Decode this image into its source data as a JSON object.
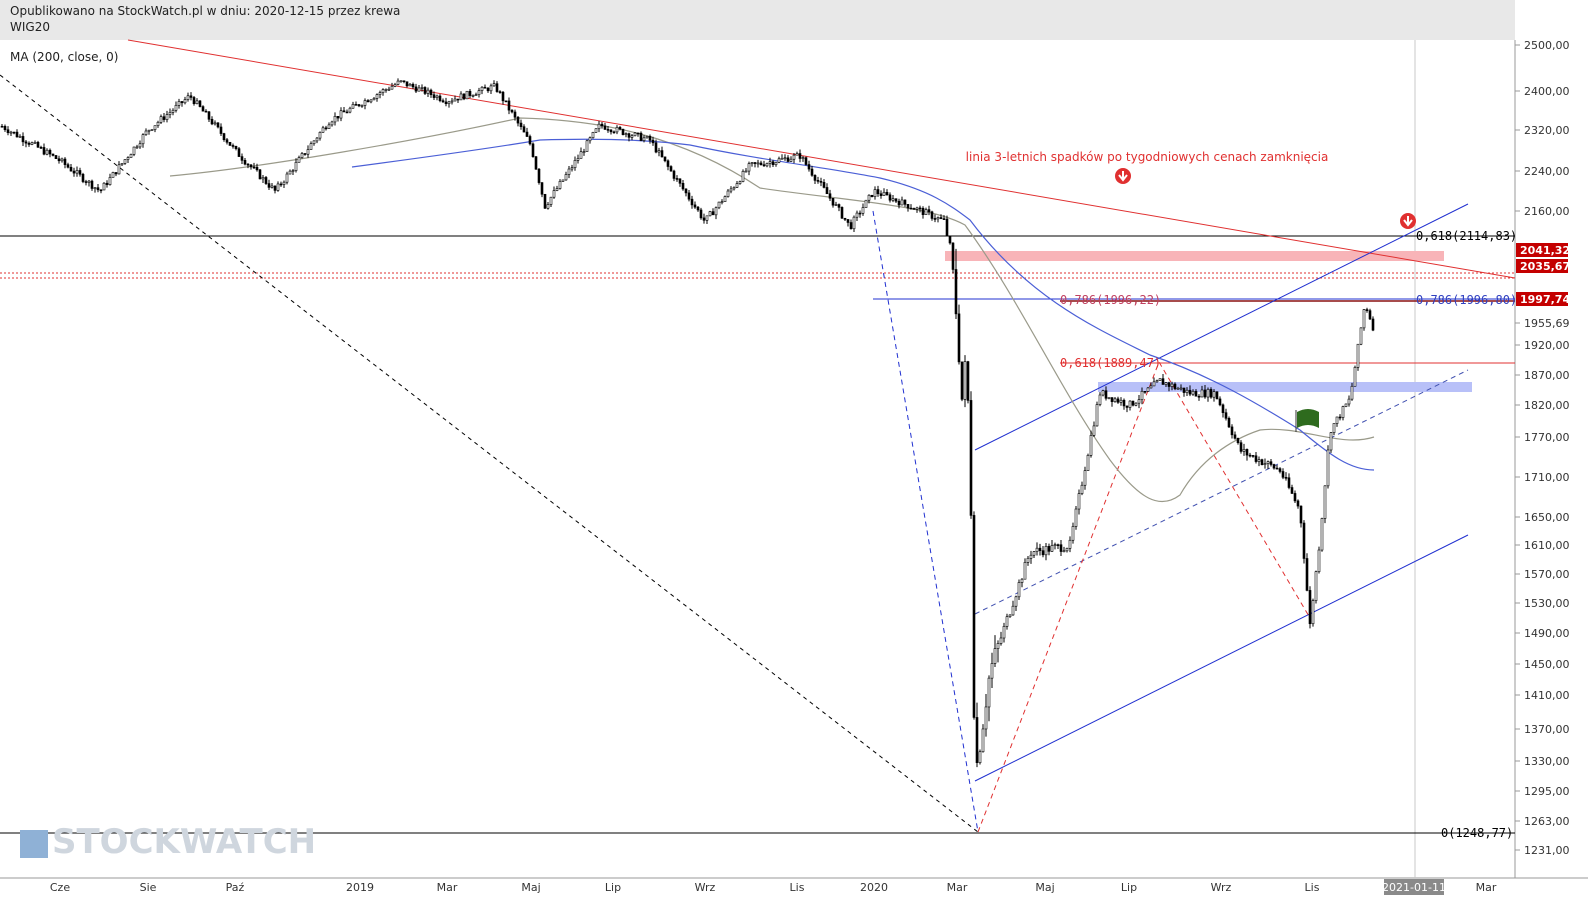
{
  "header": {
    "published_line": "Opublikowano na StockWatch.pl w dniu: 2020-12-15 przez krewa",
    "symbol": "WIG20"
  },
  "indicator_legend": "MA (200, close, 0)",
  "watermark": "STOCKWATCH",
  "colors": {
    "candle": "#000000",
    "ma_gray": "#9a9a8a",
    "ma_blue": "#4b5fd6",
    "trend_red": "#e03030",
    "channel_blue": "#2030d0",
    "zone_red": "#f8b4b8",
    "zone_blue": "#b8c0f8",
    "price_label_red": "#c40000",
    "flag_green": "#2e6b1e"
  },
  "chart_data": {
    "type": "candlestick",
    "symbol": "WIG20",
    "x_tick_labels": [
      "Cze",
      "Sie",
      "Paź",
      "2019",
      "Mar",
      "Maj",
      "Lip",
      "Wrz",
      "Lis",
      "2020",
      "Mar",
      "Maj",
      "Lip",
      "Wrz",
      "Lis",
      "2021-01-11",
      "Mar"
    ],
    "y_tick_labels": [
      "2500,00",
      "2400,00",
      "2320,00",
      "2240,00",
      "2160,00",
      "1955,69",
      "1920,00",
      "1870,00",
      "1820,00",
      "1770,00",
      "1710,00",
      "1650,00",
      "1610,00",
      "1570,00",
      "1530,00",
      "1490,00",
      "1450,00",
      "1410,00",
      "1370,00",
      "1330,00",
      "1295,00",
      "1263,00",
      "1231,00"
    ],
    "y_range": [
      1220,
      2510
    ],
    "price_labels": [
      {
        "text": "2041,32",
        "value": 2041.32
      },
      {
        "text": "2035,67",
        "value": 2035.67
      },
      {
        "text": "1997,74",
        "value": 1997.74
      }
    ],
    "fib_labels": [
      {
        "text": "0,618(2114,83)",
        "value": 2114.83
      },
      {
        "text": "0,786(1996,22)",
        "value": 1996.22
      },
      {
        "text": "0,786(1996,80)",
        "value": 1996.8
      },
      {
        "text": "0,618(1889,47)",
        "value": 1889.47
      },
      {
        "text": "0(1248,77)",
        "value": 1248.77
      }
    ],
    "annotation": "linia 3-letnich spadków po tygodniowych cenach zamknięcia"
  }
}
